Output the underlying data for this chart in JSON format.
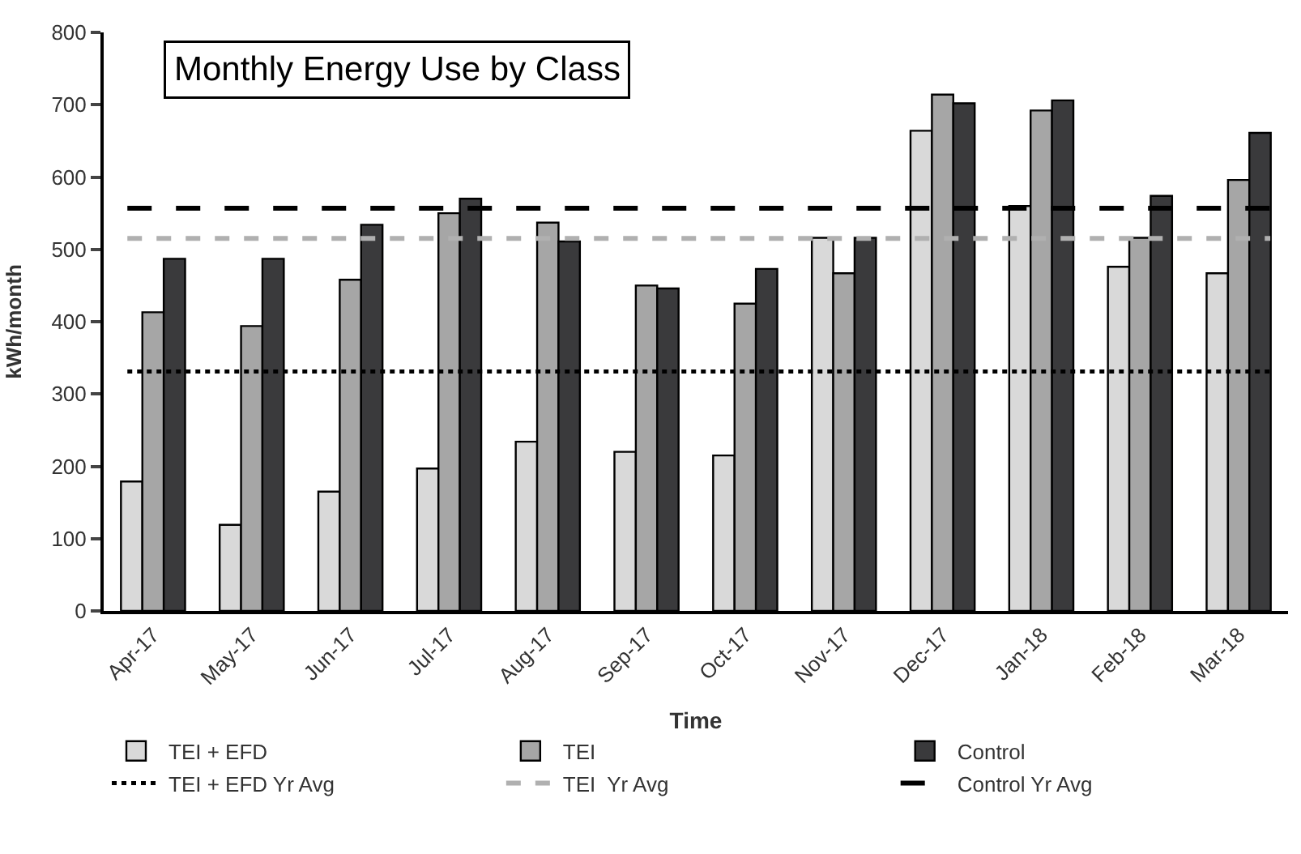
{
  "chart_data": {
    "type": "bar",
    "title": "Monthly Energy Use by Class",
    "xlabel": "Time",
    "ylabel": "kWh/month",
    "categories": [
      "Apr-17",
      "May-17",
      "Jun-17",
      "Jul-17",
      "Aug-17",
      "Sep-17",
      "Oct-17",
      "Nov-17",
      "Dec-17",
      "Jan-18",
      "Feb-18",
      "Mar-18"
    ],
    "series": [
      {
        "name": "TEI + EFD",
        "color": "#d9d9d9",
        "values": [
          179,
          119,
          165,
          197,
          234,
          220,
          215,
          516,
          664,
          560,
          476,
          467
        ]
      },
      {
        "name": "TEI",
        "color": "#a6a6a6",
        "values": [
          413,
          394,
          458,
          550,
          537,
          450,
          425,
          467,
          714,
          692,
          516,
          596
        ]
      },
      {
        "name": "Control",
        "color": "#3a3a3c",
        "values": [
          487,
          487,
          534,
          570,
          511,
          446,
          473,
          516,
          702,
          706,
          574,
          661
        ]
      }
    ],
    "ref_lines": [
      {
        "axis": "y",
        "value": 331,
        "label": "TEI + EFD Yr Avg",
        "color": "#000000",
        "line_style": "dotted"
      },
      {
        "axis": "y",
        "value": 515,
        "label": "TEI  Yr Avg",
        "color": "#b0b0b0",
        "line_style": "dashed"
      },
      {
        "axis": "y",
        "value": 557,
        "label": "Control Yr Avg",
        "color": "#000000",
        "line_style": "dashed"
      }
    ],
    "ylim": [
      0,
      800
    ],
    "yticks": [
      0,
      100,
      200,
      300,
      400,
      500,
      600,
      700,
      800
    ],
    "legend": "bottom"
  }
}
